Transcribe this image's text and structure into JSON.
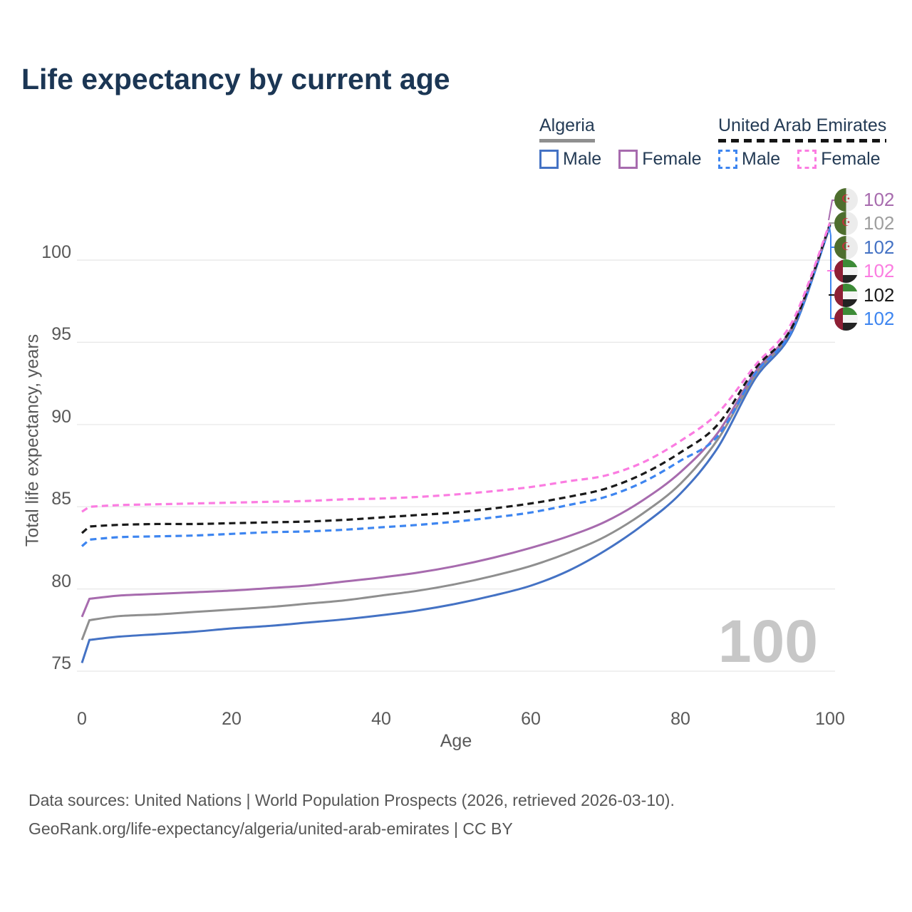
{
  "title": "Life expectancy by current age",
  "watermark": "100",
  "legend": {
    "groups": [
      {
        "country": "Algeria",
        "entries": [
          {
            "label": "Male"
          },
          {
            "label": "Female"
          }
        ]
      },
      {
        "country": "United Arab Emirates",
        "entries": [
          {
            "label": "Male"
          },
          {
            "label": "Female"
          }
        ]
      }
    ]
  },
  "footer": {
    "line1": "Data sources: United Nations | World Population Prospects (2026, retrieved 2026-03-10).",
    "line2": "GeoRank.org/life-expectancy/algeria/united-arab-emirates | CC BY"
  },
  "chart_data": {
    "type": "line",
    "title": "Life expectancy by current age",
    "xlabel": "Age",
    "ylabel": "Total life expectancy, years",
    "xlim": [
      0,
      100
    ],
    "ylim": [
      75,
      102.5
    ],
    "x_ticks": [
      0,
      20,
      40,
      60,
      80,
      100
    ],
    "y_ticks": [
      75,
      80,
      85,
      90,
      95,
      100
    ],
    "grid": "horizontal",
    "grid_color": "#e8e8e8",
    "x": [
      0,
      1,
      5,
      10,
      15,
      20,
      25,
      30,
      35,
      40,
      45,
      50,
      55,
      60,
      65,
      70,
      75,
      80,
      85,
      90,
      95,
      100
    ],
    "series": [
      {
        "name": "Algeria Male",
        "country": "Algeria",
        "sex": "Male",
        "style": "solid",
        "color": "#4472c4",
        "values": [
          75.5,
          76.9,
          77.1,
          77.25,
          77.4,
          77.6,
          77.75,
          77.95,
          78.15,
          78.4,
          78.7,
          79.1,
          79.6,
          80.2,
          81.1,
          82.35,
          83.9,
          85.8,
          88.6,
          92.8,
          95.7,
          102.1
        ]
      },
      {
        "name": "Algeria Both sexes",
        "country": "Algeria",
        "sex": "All",
        "style": "solid",
        "color": "#8f8f8f",
        "values": [
          76.9,
          78.1,
          78.35,
          78.45,
          78.6,
          78.75,
          78.9,
          79.1,
          79.3,
          79.6,
          79.9,
          80.3,
          80.8,
          81.4,
          82.2,
          83.2,
          84.6,
          86.4,
          89.1,
          93.0,
          95.9,
          102.15
        ]
      },
      {
        "name": "Algeria Female",
        "country": "Algeria",
        "sex": "Female",
        "style": "solid",
        "color": "#a76bae",
        "values": [
          78.3,
          79.4,
          79.6,
          79.7,
          79.8,
          79.9,
          80.05,
          80.2,
          80.45,
          80.7,
          81.0,
          81.4,
          81.9,
          82.5,
          83.2,
          84.1,
          85.4,
          87.1,
          89.5,
          93.2,
          96.0,
          102.2
        ]
      },
      {
        "name": "United Arab Emirates Male",
        "country": "United Arab Emirates",
        "sex": "Male",
        "style": "dashed",
        "color": "#3d85f0",
        "values": [
          82.6,
          83.0,
          83.15,
          83.2,
          83.25,
          83.35,
          83.45,
          83.5,
          83.6,
          83.75,
          83.9,
          84.1,
          84.35,
          84.65,
          85.1,
          85.6,
          86.5,
          87.8,
          89.3,
          93.1,
          95.8,
          102.1
        ]
      },
      {
        "name": "United Arab Emirates Both sexes",
        "country": "United Arab Emirates",
        "sex": "All",
        "style": "dashed",
        "color": "#1a1a1a",
        "values": [
          83.4,
          83.8,
          83.9,
          83.95,
          83.95,
          84.0,
          84.05,
          84.1,
          84.2,
          84.35,
          84.5,
          84.65,
          84.9,
          85.2,
          85.6,
          86.1,
          87.0,
          88.3,
          90.0,
          93.4,
          96.0,
          102.2
        ]
      },
      {
        "name": "United Arab Emirates Female",
        "country": "United Arab Emirates",
        "sex": "Female",
        "style": "dashed",
        "color": "#fb7ce1",
        "values": [
          84.7,
          85.0,
          85.1,
          85.15,
          85.2,
          85.25,
          85.3,
          85.35,
          85.45,
          85.5,
          85.6,
          85.75,
          85.95,
          86.2,
          86.55,
          86.9,
          87.7,
          89.0,
          90.7,
          93.6,
          96.3,
          102.3
        ]
      }
    ],
    "end_labels": [
      {
        "flag": "algeria",
        "series": "Algeria Female",
        "value": "102",
        "color": "#a76bae"
      },
      {
        "flag": "algeria",
        "series": "Algeria Both sexes",
        "value": "102",
        "color": "#9e9e9e"
      },
      {
        "flag": "algeria",
        "series": "Algeria Male",
        "value": "102",
        "color": "#4472c4"
      },
      {
        "flag": "uae",
        "series": "United Arab Emirates Female",
        "value": "102",
        "color": "#fb7ce1"
      },
      {
        "flag": "uae",
        "series": "United Arab Emirates Both sexes",
        "value": "102",
        "color": "#1a1a1a"
      },
      {
        "flag": "uae",
        "series": "United Arab Emirates Male",
        "value": "102",
        "color": "#3d85f0"
      }
    ],
    "legend_position": "top-right"
  }
}
